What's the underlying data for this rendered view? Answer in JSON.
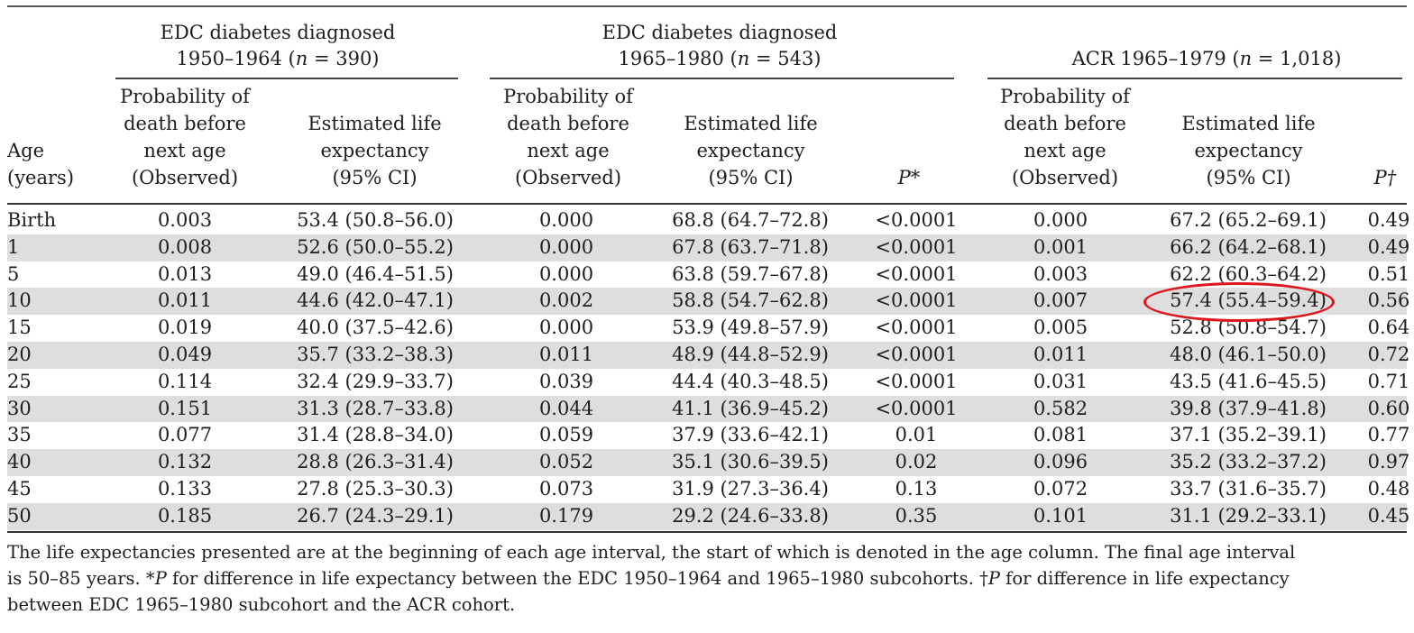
{
  "groups": [
    {
      "line1": "EDC diabetes diagnosed",
      "line2_pre": "1950–1964 (",
      "n_var": "n",
      "line2_post": " = 390)"
    },
    {
      "line1": "EDC diabetes diagnosed",
      "line2_pre": "1965–1980 (",
      "n_var": "n",
      "line2_post": " = 543)"
    },
    {
      "line1": "",
      "line2_pre": "ACR 1965–1979 (",
      "n_var": "n",
      "line2_post": " = 1,018)"
    }
  ],
  "columns": {
    "age": [
      "Age",
      "(years)"
    ],
    "prob": [
      "Probability of",
      "death before",
      "next age",
      "(Observed)"
    ],
    "life": [
      "Estimated life",
      "expectancy",
      "(95% CI)"
    ],
    "p1": "P*",
    "p2": "P†"
  },
  "rows": [
    {
      "age": "Birth",
      "p1": "0.003",
      "l1": "53.4 (50.8–56.0)",
      "p2": "0.000",
      "l2": "68.8 (64.7–72.8)",
      "pv1": "<0.0001",
      "p3": "0.000",
      "l3": "67.2 (65.2–69.1)",
      "pv2": "0.49"
    },
    {
      "age": "1",
      "p1": "0.008",
      "l1": "52.6 (50.0–55.2)",
      "p2": "0.000",
      "l2": "67.8 (63.7–71.8)",
      "pv1": "<0.0001",
      "p3": "0.001",
      "l3": "66.2 (64.2–68.1)",
      "pv2": "0.49"
    },
    {
      "age": "5",
      "p1": "0.013",
      "l1": "49.0 (46.4–51.5)",
      "p2": "0.000",
      "l2": "63.8 (59.7–67.8)",
      "pv1": "<0.0001",
      "p3": "0.003",
      "l3": "62.2 (60.3–64.2)",
      "pv2": "0.51"
    },
    {
      "age": "10",
      "p1": "0.011",
      "l1": "44.6 (42.0–47.1)",
      "p2": "0.002",
      "l2": "58.8 (54.7–62.8)",
      "pv1": "<0.0001",
      "p3": "0.007",
      "l3": "57.4 (55.4–59.4)",
      "pv2": "0.56"
    },
    {
      "age": "15",
      "p1": "0.019",
      "l1": "40.0 (37.5–42.6)",
      "p2": "0.000",
      "l2": "53.9 (49.8–57.9)",
      "pv1": "<0.0001",
      "p3": "0.005",
      "l3": "52.8 (50.8–54.7)",
      "pv2": "0.64"
    },
    {
      "age": "20",
      "p1": "0.049",
      "l1": "35.7 (33.2–38.3)",
      "p2": "0.011",
      "l2": "48.9 (44.8–52.9)",
      "pv1": "<0.0001",
      "p3": "0.011",
      "l3": "48.0 (46.1–50.0)",
      "pv2": "0.72"
    },
    {
      "age": "25",
      "p1": "0.114",
      "l1": "32.4 (29.9–33.7)",
      "p2": "0.039",
      "l2": "44.4 (40.3–48.5)",
      "pv1": "<0.0001",
      "p3": "0.031",
      "l3": "43.5 (41.6–45.5)",
      "pv2": "0.71"
    },
    {
      "age": "30",
      "p1": "0.151",
      "l1": "31.3 (28.7–33.8)",
      "p2": "0.044",
      "l2": "41.1 (36.9–45.2)",
      "pv1": "<0.0001",
      "p3": "0.582",
      "l3": "39.8 (37.9–41.8)",
      "pv2": "0.60"
    },
    {
      "age": "35",
      "p1": "0.077",
      "l1": "31.4 (28.8–34.0)",
      "p2": "0.059",
      "l2": "37.9 (33.6–42.1)",
      "pv1": "0.01",
      "p3": "0.081",
      "l3": "37.1 (35.2–39.1)",
      "pv2": "0.77"
    },
    {
      "age": "40",
      "p1": "0.132",
      "l1": "28.8 (26.3–31.4)",
      "p2": "0.052",
      "l2": "35.1 (30.6–39.5)",
      "pv1": "0.02",
      "p3": "0.096",
      "l3": "35.2 (33.2–37.2)",
      "pv2": "0.97"
    },
    {
      "age": "45",
      "p1": "0.133",
      "l1": "27.8 (25.3–30.3)",
      "p2": "0.073",
      "l2": "31.9 (27.3–36.4)",
      "pv1": "0.13",
      "p3": "0.072",
      "l3": "33.7 (31.6–35.7)",
      "pv2": "0.48"
    },
    {
      "age": "50",
      "p1": "0.185",
      "l1": "26.7 (24.3–29.1)",
      "p2": "0.179",
      "l2": "29.2 (24.6–33.8)",
      "pv1": "0.35",
      "p3": "0.101",
      "l3": "31.1 (29.2–33.1)",
      "pv2": "0.45"
    }
  ],
  "footnote": {
    "line1": "The life expectancies presented are at the beginning of each age interval, the start of which is denoted in the age column. The final age interval",
    "line2_a": "is 50–85 years. *",
    "line2_p1": "P",
    "line2_b": " for difference in life expectancy between the EDC 1950–1964 and 1965–1980 subcohorts. †",
    "line2_p2": "P",
    "line2_c": " for difference in life expectancy",
    "line3": "between EDC 1965–1980 subcohort and the ACR cohort."
  },
  "annotation": {
    "highlighted_cell": "57.4 (55.4–59.4)",
    "color": "#e0161e"
  },
  "colors": {
    "row_shade": "#dedede",
    "text": "#1e1e1e"
  }
}
